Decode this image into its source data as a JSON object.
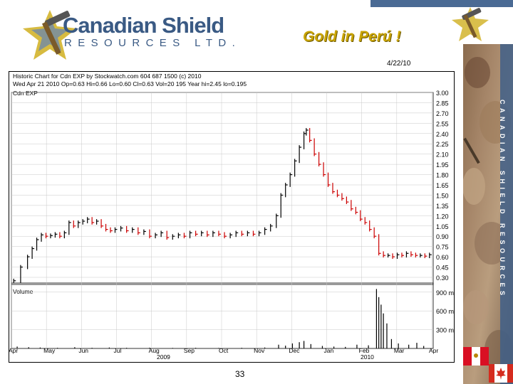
{
  "header": {
    "company_name": "Canadian Shield",
    "company_sub": "RESOURCES LTD.",
    "headline": "Gold  in Perú !",
    "date": "4/22/10",
    "side_text": "CANADIAN SHIELD RESOURCES"
  },
  "footer": {
    "page_number": "33"
  },
  "colors": {
    "brand_blue": "#3a5a84",
    "gold": "#c9a400",
    "bar_red": "#cc0000",
    "bar_black": "#000000",
    "grid": "#c8c8c8"
  },
  "chart_data": {
    "type": "bar",
    "chart_style": "OHLC price chart with volume panel",
    "title_line1": "Historic Chart for Cdn EXP by Stockwatch.com 604 687 1500 (c) 2010",
    "title_line2": "Wed Apr 21 2010  Op=0.63  Hi=0.66  Lo=0.60  Cl=0.63  Vol=20 195  Year hi=2.45  lo=0.195",
    "series_label": "Cdn EXP",
    "volume_label": "Volume",
    "price_ticks": [
      "3.00",
      "2.85",
      "2.70",
      "2.55",
      "2.40",
      "2.25",
      "2.10",
      "1.95",
      "1.80",
      "1.65",
      "1.50",
      "1.35",
      "1.20",
      "1.05",
      "0.90",
      "0.75",
      "0.60",
      "0.45",
      "0.30"
    ],
    "ylim": [
      0.3,
      3.0
    ],
    "volume_ticks": [
      "900 m",
      "600 m",
      "300 m"
    ],
    "volume_ylim": [
      0,
      1000
    ],
    "month_ticks": [
      "Apr",
      "May",
      "Jun",
      "Jul",
      "Aug",
      "Sep",
      "Oct",
      "Nov",
      "Dec",
      "Jan",
      "Feb",
      "Mar",
      "Apr"
    ],
    "year_labels": [
      "2009",
      "2010"
    ],
    "x_span_days": 365,
    "prices": [
      {
        "d": 2,
        "c": 0.25
      },
      {
        "d": 8,
        "c": 0.45
      },
      {
        "d": 14,
        "c": 0.6
      },
      {
        "d": 18,
        "c": 0.72
      },
      {
        "d": 22,
        "c": 0.85
      },
      {
        "d": 26,
        "c": 0.92
      },
      {
        "d": 30,
        "c": 0.9
      },
      {
        "d": 34,
        "c": 0.91
      },
      {
        "d": 38,
        "c": 0.93
      },
      {
        "d": 42,
        "c": 0.9
      },
      {
        "d": 46,
        "c": 0.95
      },
      {
        "d": 50,
        "c": 1.1
      },
      {
        "d": 54,
        "c": 1.05
      },
      {
        "d": 58,
        "c": 1.1
      },
      {
        "d": 62,
        "c": 1.12
      },
      {
        "d": 66,
        "c": 1.15
      },
      {
        "d": 70,
        "c": 1.1
      },
      {
        "d": 74,
        "c": 1.12
      },
      {
        "d": 78,
        "c": 1.05
      },
      {
        "d": 82,
        "c": 1.0
      },
      {
        "d": 86,
        "c": 0.98
      },
      {
        "d": 90,
        "c": 1.0
      },
      {
        "d": 95,
        "c": 1.02
      },
      {
        "d": 100,
        "c": 0.98
      },
      {
        "d": 105,
        "c": 1.0
      },
      {
        "d": 110,
        "c": 0.95
      },
      {
        "d": 115,
        "c": 0.97
      },
      {
        "d": 120,
        "c": 0.9
      },
      {
        "d": 125,
        "c": 0.92
      },
      {
        "d": 130,
        "c": 0.95
      },
      {
        "d": 135,
        "c": 0.88
      },
      {
        "d": 140,
        "c": 0.9
      },
      {
        "d": 145,
        "c": 0.92
      },
      {
        "d": 150,
        "c": 0.9
      },
      {
        "d": 155,
        "c": 0.95
      },
      {
        "d": 160,
        "c": 0.93
      },
      {
        "d": 165,
        "c": 0.95
      },
      {
        "d": 170,
        "c": 0.92
      },
      {
        "d": 175,
        "c": 0.95
      },
      {
        "d": 180,
        "c": 0.93
      },
      {
        "d": 185,
        "c": 0.9
      },
      {
        "d": 190,
        "c": 0.92
      },
      {
        "d": 195,
        "c": 0.95
      },
      {
        "d": 200,
        "c": 0.93
      },
      {
        "d": 205,
        "c": 0.95
      },
      {
        "d": 210,
        "c": 0.93
      },
      {
        "d": 215,
        "c": 0.95
      },
      {
        "d": 220,
        "c": 1.0
      },
      {
        "d": 225,
        "c": 1.05
      },
      {
        "d": 230,
        "c": 1.2
      },
      {
        "d": 234,
        "c": 1.5
      },
      {
        "d": 238,
        "c": 1.65
      },
      {
        "d": 242,
        "c": 1.8
      },
      {
        "d": 246,
        "c": 2.0
      },
      {
        "d": 250,
        "c": 2.2
      },
      {
        "d": 254,
        "c": 2.4
      },
      {
        "d": 256,
        "c": 2.45
      },
      {
        "d": 259,
        "c": 2.3
      },
      {
        "d": 263,
        "c": 2.1
      },
      {
        "d": 267,
        "c": 1.95
      },
      {
        "d": 271,
        "c": 1.8
      },
      {
        "d": 275,
        "c": 1.65
      },
      {
        "d": 279,
        "c": 1.55
      },
      {
        "d": 283,
        "c": 1.5
      },
      {
        "d": 287,
        "c": 1.45
      },
      {
        "d": 291,
        "c": 1.4
      },
      {
        "d": 295,
        "c": 1.3
      },
      {
        "d": 299,
        "c": 1.25
      },
      {
        "d": 303,
        "c": 1.15
      },
      {
        "d": 307,
        "c": 1.1
      },
      {
        "d": 311,
        "c": 1.0
      },
      {
        "d": 315,
        "c": 0.9
      },
      {
        "d": 319,
        "c": 0.65
      },
      {
        "d": 323,
        "c": 0.62
      },
      {
        "d": 327,
        "c": 0.62
      },
      {
        "d": 331,
        "c": 0.6
      },
      {
        "d": 335,
        "c": 0.63
      },
      {
        "d": 339,
        "c": 0.62
      },
      {
        "d": 343,
        "c": 0.65
      },
      {
        "d": 347,
        "c": 0.63
      },
      {
        "d": 351,
        "c": 0.62
      },
      {
        "d": 355,
        "c": 0.62
      },
      {
        "d": 359,
        "c": 0.61
      },
      {
        "d": 363,
        "c": 0.63
      }
    ],
    "volume": [
      {
        "d": 5,
        "v": 30
      },
      {
        "d": 15,
        "v": 20
      },
      {
        "d": 25,
        "v": 15
      },
      {
        "d": 40,
        "v": 10
      },
      {
        "d": 55,
        "v": 20
      },
      {
        "d": 70,
        "v": 10
      },
      {
        "d": 85,
        "v": 15
      },
      {
        "d": 100,
        "v": 10
      },
      {
        "d": 120,
        "v": 12
      },
      {
        "d": 140,
        "v": 8
      },
      {
        "d": 160,
        "v": 10
      },
      {
        "d": 180,
        "v": 8
      },
      {
        "d": 200,
        "v": 10
      },
      {
        "d": 220,
        "v": 15
      },
      {
        "d": 232,
        "v": 60
      },
      {
        "d": 238,
        "v": 45
      },
      {
        "d": 244,
        "v": 80
      },
      {
        "d": 250,
        "v": 100
      },
      {
        "d": 254,
        "v": 120
      },
      {
        "d": 260,
        "v": 70
      },
      {
        "d": 270,
        "v": 40
      },
      {
        "d": 280,
        "v": 30
      },
      {
        "d": 290,
        "v": 25
      },
      {
        "d": 300,
        "v": 60
      },
      {
        "d": 310,
        "v": 50
      },
      {
        "d": 317,
        "v": 950
      },
      {
        "d": 319,
        "v": 820
      },
      {
        "d": 321,
        "v": 700
      },
      {
        "d": 323,
        "v": 560
      },
      {
        "d": 326,
        "v": 400
      },
      {
        "d": 330,
        "v": 150
      },
      {
        "d": 336,
        "v": 80
      },
      {
        "d": 345,
        "v": 60
      },
      {
        "d": 352,
        "v": 90
      },
      {
        "d": 358,
        "v": 40
      }
    ],
    "grid": true
  }
}
